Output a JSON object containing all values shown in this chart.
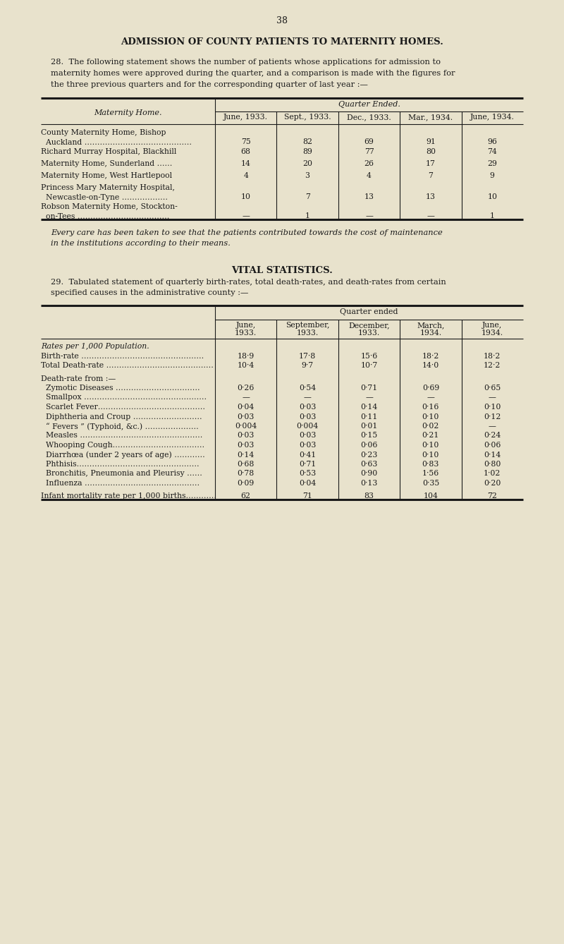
{
  "bg_color": "#e8e2cc",
  "page_number": "38",
  "section1_title": "ADMISSION OF COUNTY PATIENTS TO MATERNITY HOMES.",
  "table1_col_headers": [
    "June, 1933.",
    "Sept., 1933.",
    "Dec., 1933.",
    "Mar., 1934.",
    "June, 1934."
  ],
  "table1_rows": [
    {
      "label": [
        "County Maternity Home, Bishop",
        "  Auckland ……………………………………"
      ],
      "values": [
        "75",
        "82",
        "69",
        "91",
        "96"
      ]
    },
    {
      "label": [
        "Richard Murray Hospital, Blackhill"
      ],
      "values": [
        "68",
        "89",
        "77",
        "80",
        "74"
      ]
    },
    {
      "label": [
        "Maternity Home, Sunderland …… "
      ],
      "values": [
        "14",
        "20",
        "26",
        "17",
        "29"
      ]
    },
    {
      "label": [
        "Maternity Home, West Hartlepool"
      ],
      "values": [
        "4",
        "3",
        "4",
        "7",
        "9"
      ]
    },
    {
      "label": [
        "Princess Mary Maternity Hospital,",
        "  Newcastle-on-Tyne ………………"
      ],
      "values": [
        "10",
        "7",
        "13",
        "13",
        "10"
      ]
    },
    {
      "label": [
        "Robson Maternity Home, Stockton-",
        "  on-Tees ………………………………"
      ],
      "values": [
        "—",
        "1",
        "—",
        "—",
        "1"
      ]
    }
  ],
  "table1_footer_lines": [
    "Every care has been taken to see that the patients contributed towards the cost of maintenance",
    "in the institutions according to their means."
  ],
  "section2_title": "VITAL STATISTICS.",
  "table2_col_headers": [
    "June,\n1933.",
    "September,\n1933.",
    "December,\n1933.",
    "March,\n1934.",
    "June,\n1934."
  ],
  "table2_rows": [
    {
      "label": "Rates per 1,000 Population.",
      "indent": 0,
      "italic": true,
      "values": [
        "",
        "",
        "",
        "",
        ""
      ],
      "spacer": false
    },
    {
      "label": "Birth-rate …………………………………………",
      "indent": 0,
      "italic": false,
      "values": [
        "18·9",
        "17·8",
        "15·6",
        "18·2",
        "18·2"
      ],
      "spacer": false
    },
    {
      "label": "Total Death-rate ……………………………………",
      "indent": 0,
      "italic": false,
      "values": [
        "10·4",
        "9·7",
        "10·7",
        "14·0",
        "12·2"
      ],
      "spacer": true
    },
    {
      "label": "Death-rate from :—",
      "indent": 0,
      "italic": false,
      "values": [
        "",
        "",
        "",
        "",
        ""
      ],
      "spacer": false
    },
    {
      "label": "  Zymotic Diseases ……………………………",
      "indent": 0,
      "italic": false,
      "values": [
        "0·26",
        "0·54",
        "0·71",
        "0·69",
        "0·65"
      ],
      "spacer": false
    },
    {
      "label": "  Smallpox …………………………………………",
      "indent": 0,
      "italic": false,
      "values": [
        "—",
        "—",
        "—",
        "—",
        "—"
      ],
      "spacer": false
    },
    {
      "label": "  Scarlet Fever……………………………………",
      "indent": 0,
      "italic": false,
      "values": [
        "0·04",
        "0·03",
        "0·14",
        "0·16",
        "0·10"
      ],
      "spacer": false
    },
    {
      "label": "  Diphtheria and Croup ………………………",
      "indent": 0,
      "italic": false,
      "values": [
        "0·03",
        "0·03",
        "0·11",
        "0·10",
        "0·12"
      ],
      "spacer": false
    },
    {
      "label": "  “ Fevers ” (Typhoid, &c.) …………………",
      "indent": 0,
      "italic": false,
      "values": [
        "0·004",
        "0·004",
        "0·01",
        "0·02",
        "—"
      ],
      "spacer": false
    },
    {
      "label": "  Measles …………………………………………",
      "indent": 0,
      "italic": false,
      "values": [
        "0·03",
        "0·03",
        "0·15",
        "0·21",
        "0·24"
      ],
      "spacer": false
    },
    {
      "label": "  Whooping Cough………………………………",
      "indent": 0,
      "italic": false,
      "values": [
        "0·03",
        "0·03",
        "0·06",
        "0·10",
        "0·06"
      ],
      "spacer": false
    },
    {
      "label": "  Diarrhœa (under 2 years of age) …………",
      "indent": 0,
      "italic": false,
      "values": [
        "0·14",
        "0·41",
        "0·23",
        "0·10",
        "0·14"
      ],
      "spacer": false
    },
    {
      "label": "  Phthisis…………………………………………",
      "indent": 0,
      "italic": false,
      "values": [
        "0·68",
        "0·71",
        "0·63",
        "0·83",
        "0·80"
      ],
      "spacer": false
    },
    {
      "label": "  Bronchitis, Pneumonia and Pleurisy ……",
      "indent": 0,
      "italic": false,
      "values": [
        "0·78",
        "0·53",
        "0·90",
        "1·56",
        "1·02"
      ],
      "spacer": false
    },
    {
      "label": "  Influenza ………………………………………",
      "indent": 0,
      "italic": false,
      "values": [
        "0·09",
        "0·04",
        "0·13",
        "0·35",
        "0·20"
      ],
      "spacer": true
    },
    {
      "label": "Infant mortality rate per 1,000 births…………",
      "indent": 0,
      "italic": false,
      "values": [
        "62",
        "71",
        "83",
        "104",
        "72"
      ],
      "spacer": false
    }
  ]
}
